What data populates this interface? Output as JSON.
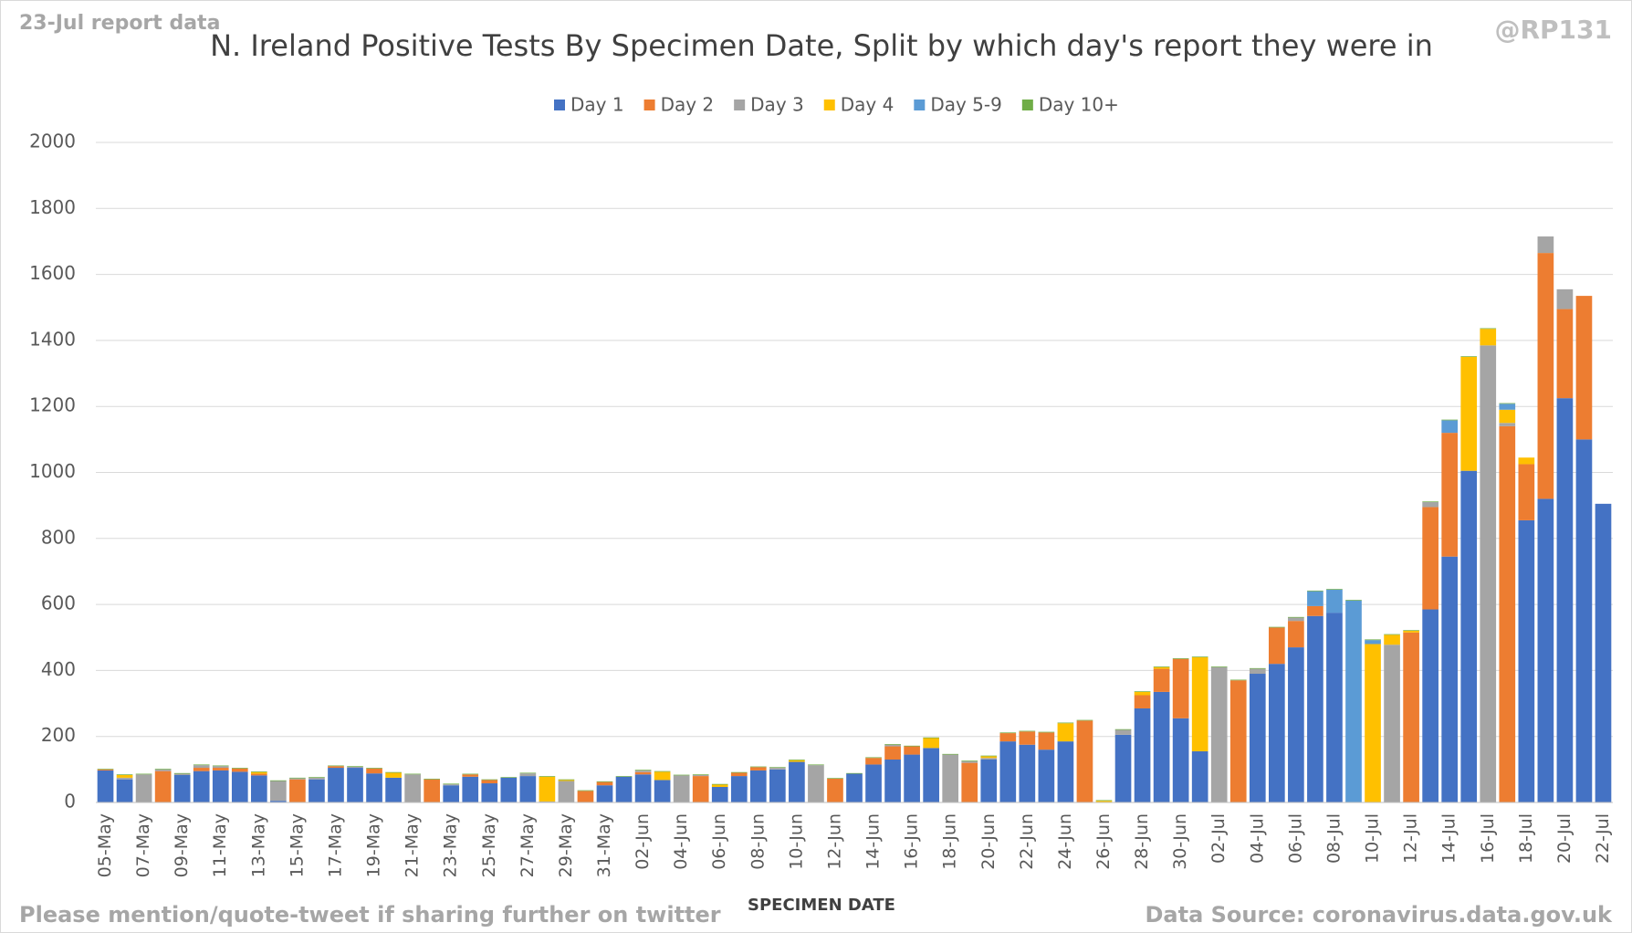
{
  "chart_data": {
    "type": "stacked_bar",
    "title": "N. Ireland Positive Tests By Specimen Date, Split by which day's report they were in",
    "report_note": "23-Jul report data",
    "handle": "@RP131",
    "x_label": "SPECIMEN DATE",
    "footer_left": "Please mention/quote-tweet if sharing further on twitter",
    "footer_right": "Data Source: coronavirus.data.gov.uk",
    "legend": "top",
    "grid": true,
    "ylim": [
      0,
      2000
    ],
    "yticks": [
      0,
      200,
      400,
      600,
      800,
      1000,
      1200,
      1400,
      1600,
      1800,
      2000
    ],
    "categories": [
      "05-May",
      null,
      "07-May",
      null,
      "09-May",
      null,
      "11-May",
      null,
      "13-May",
      null,
      "15-May",
      null,
      "17-May",
      null,
      "19-May",
      null,
      "21-May",
      null,
      "23-May",
      null,
      "25-May",
      null,
      "27-May",
      null,
      "29-May",
      null,
      "31-May",
      null,
      "02-Jun",
      null,
      "04-Jun",
      null,
      "06-Jun",
      null,
      "08-Jun",
      null,
      "10-Jun",
      null,
      "12-Jun",
      null,
      "14-Jun",
      null,
      "16-Jun",
      null,
      "18-Jun",
      null,
      "20-Jun",
      null,
      "22-Jun",
      null,
      "24-Jun",
      null,
      "26-Jun",
      null,
      "28-Jun",
      null,
      "30-Jun",
      null,
      "02-Jul",
      null,
      "04-Jul",
      null,
      "06-Jul",
      null,
      "08-Jul",
      null,
      "10-Jul",
      null,
      "12-Jul",
      null,
      "14-Jul",
      null,
      "16-Jul",
      null,
      "18-Jul",
      null,
      "20-Jul",
      null,
      "22-Jul"
    ],
    "series": [
      {
        "name": "Day 1",
        "color": "#4472c4",
        "values": [
          97,
          70,
          0,
          0,
          83,
          95,
          97,
          93,
          82,
          5,
          0,
          70,
          105,
          105,
          88,
          75,
          0,
          0,
          52,
          78,
          58,
          75,
          80,
          0,
          0,
          0,
          52,
          78,
          85,
          68,
          0,
          0,
          47,
          80,
          97,
          100,
          123,
          0,
          0,
          87,
          115,
          130,
          145,
          165,
          0,
          0,
          130,
          185,
          175,
          160,
          185,
          0,
          0,
          205,
          285,
          335,
          255,
          155,
          0,
          0,
          390,
          420,
          470,
          565,
          575,
          0,
          0,
          0,
          0,
          585,
          745,
          1005,
          0,
          0,
          855,
          920,
          1225,
          1100,
          905
        ]
      },
      {
        "name": "Day 2",
        "color": "#ed7d31",
        "values": [
          3,
          0,
          0,
          95,
          0,
          10,
          8,
          10,
          5,
          0,
          70,
          0,
          5,
          0,
          15,
          0,
          0,
          70,
          0,
          7,
          10,
          0,
          0,
          0,
          0,
          35,
          10,
          0,
          7,
          0,
          0,
          80,
          0,
          10,
          10,
          0,
          0,
          0,
          72,
          0,
          20,
          40,
          25,
          0,
          0,
          120,
          0,
          25,
          40,
          52,
          0,
          248,
          0,
          0,
          40,
          70,
          180,
          0,
          0,
          370,
          0,
          110,
          80,
          30,
          0,
          0,
          0,
          0,
          515,
          310,
          375,
          0,
          0,
          1140,
          170,
          745,
          270,
          435,
          0
        ]
      },
      {
        "name": "Day 3",
        "color": "#a5a5a5",
        "values": [
          0,
          5,
          85,
          5,
          4,
          8,
          5,
          0,
          0,
          60,
          3,
          5,
          0,
          3,
          0,
          0,
          85,
          0,
          3,
          0,
          0,
          0,
          8,
          3,
          65,
          0,
          0,
          0,
          5,
          0,
          82,
          3,
          0,
          0,
          0,
          5,
          0,
          113,
          0,
          0,
          0,
          5,
          0,
          0,
          145,
          5,
          5,
          0,
          0,
          0,
          0,
          0,
          0,
          15,
          0,
          0,
          0,
          0,
          410,
          0,
          15,
          0,
          10,
          0,
          0,
          0,
          0,
          478,
          0,
          15,
          0,
          0,
          1385,
          10,
          0,
          50,
          60,
          0,
          0
        ]
      },
      {
        "name": "Day 4",
        "color": "#ffc000",
        "values": [
          0,
          8,
          0,
          0,
          0,
          0,
          0,
          0,
          5,
          0,
          0,
          0,
          0,
          0,
          0,
          15,
          0,
          0,
          0,
          0,
          0,
          0,
          0,
          75,
          3,
          0,
          0,
          0,
          0,
          25,
          0,
          0,
          7,
          0,
          0,
          0,
          5,
          0,
          0,
          0,
          0,
          0,
          0,
          30,
          0,
          0,
          5,
          0,
          0,
          0,
          55,
          0,
          5,
          0,
          10,
          5,
          0,
          285,
          0,
          0,
          0,
          0,
          0,
          0,
          0,
          0,
          480,
          30,
          5,
          0,
          0,
          345,
          50,
          40,
          20,
          0,
          0,
          0,
          0
        ]
      },
      {
        "name": "Day 5-9",
        "color": "#5b9bd5",
        "values": [
          0,
          0,
          0,
          0,
          0,
          0,
          0,
          0,
          0,
          0,
          0,
          0,
          0,
          0,
          0,
          0,
          0,
          0,
          0,
          0,
          0,
          0,
          0,
          0,
          0,
          0,
          0,
          0,
          0,
          0,
          0,
          0,
          0,
          0,
          0,
          0,
          0,
          0,
          0,
          0,
          0,
          0,
          0,
          0,
          0,
          0,
          0,
          0,
          0,
          0,
          0,
          0,
          0,
          0,
          0,
          0,
          0,
          0,
          0,
          0,
          0,
          0,
          0,
          45,
          70,
          612,
          12,
          0,
          0,
          0,
          38,
          0,
          0,
          18,
          0,
          0,
          0,
          0,
          0
        ]
      },
      {
        "name": "Day 10+",
        "color": "#70ad47",
        "values": [
          2,
          2,
          2,
          2,
          2,
          2,
          2,
          2,
          2,
          2,
          2,
          2,
          2,
          2,
          2,
          2,
          2,
          2,
          2,
          2,
          2,
          2,
          2,
          2,
          2,
          2,
          2,
          2,
          2,
          2,
          2,
          2,
          2,
          2,
          2,
          2,
          2,
          2,
          2,
          2,
          2,
          2,
          2,
          2,
          2,
          2,
          2,
          2,
          2,
          2,
          2,
          2,
          2,
          2,
          2,
          2,
          2,
          2,
          2,
          2,
          2,
          2,
          2,
          2,
          2,
          2,
          2,
          2,
          2,
          2,
          2,
          2,
          2,
          2,
          0,
          0,
          0,
          0,
          0
        ]
      }
    ]
  }
}
